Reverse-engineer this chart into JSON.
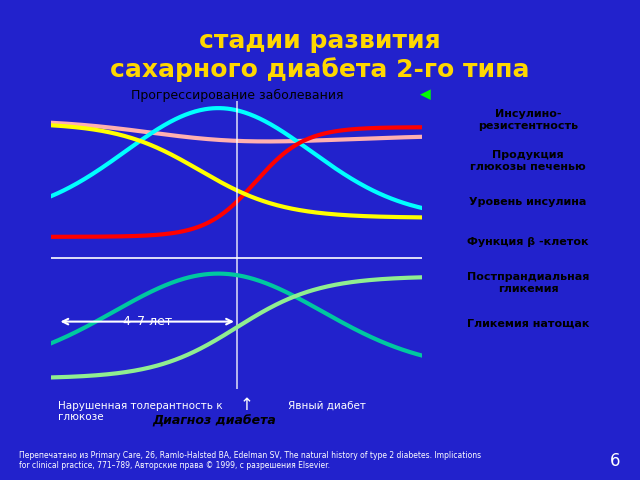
{
  "title_line1": "стадии развития",
  "title_line2": "сахарного диабета 2-го типа",
  "title_color": "#FFD700",
  "bg_color": "#2222CC",
  "slide_number": "6",
  "progress_bar_label": "Прогрессирование заболевания",
  "years_label": "4–7 лет",
  "label_igr": "Нарушенная толерантность к\nглюкозе",
  "label_diabetes": "Явный диабет",
  "label_diagnosis": "Диагноз диабета",
  "legend_items": [
    {
      "label": "Инсулино-\nрезистентность",
      "bg": "#FFD0A0",
      "fg": "#000000"
    },
    {
      "label": "Продукция\nглюкозы печенью",
      "bg": "#FF0000",
      "fg": "#000000"
    },
    {
      "label": "Уровень инсулина",
      "bg": "#00FFFF",
      "fg": "#000000"
    },
    {
      "label": "Функция β -клеток",
      "bg": "#FFFF00",
      "fg": "#000000"
    },
    {
      "label": "Постпрандиальная\nгликемия",
      "bg": "#00C8A0",
      "fg": "#000000"
    },
    {
      "label": "Гликемия натощак",
      "bg": "#90EE90",
      "fg": "#000000"
    }
  ],
  "footnote": "Перепечатано из Primary Care, 26, Ramlo-Halsted BA, Edelman SV, The natural history of type 2 diabetes. Implications\nfor clinical practice, 771–789, Авторские права © 1999, с разрешения Elsevier.",
  "lines": {
    "insulin_resistance": {
      "color": "#FFB0B0",
      "lw": 3
    },
    "glucose_production": {
      "color": "#FF0000",
      "lw": 3
    },
    "insulin_level": {
      "color": "#00FFFF",
      "lw": 3
    },
    "beta_function": {
      "color": "#FFFF00",
      "lw": 3
    },
    "postprandial": {
      "color": "#00C8A0",
      "lw": 3
    },
    "fasting": {
      "color": "#90EE90",
      "lw": 3
    }
  }
}
